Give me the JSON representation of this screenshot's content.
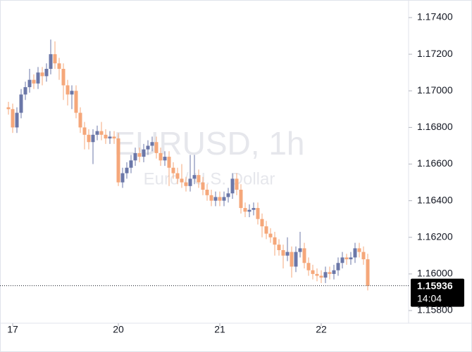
{
  "chart_data": {
    "type": "candlestick",
    "watermark": "EURUSD, 1h",
    "watermark_subtitle": "Euro / U.S. Dollar",
    "countdown": "14:04",
    "up_color": "#6b77a8",
    "down_color": "#f5a77a",
    "xlim": [
      -2,
      94.67
    ],
    "xticks": [
      {
        "value": 1,
        "label": "17"
      },
      {
        "value": 26,
        "label": "20"
      },
      {
        "value": 50,
        "label": "21"
      },
      {
        "value": 74,
        "label": "22"
      }
    ],
    "ylim": [
      1.15731,
      1.17496
    ],
    "yticks": [
      {
        "value": 1.174,
        "label": "1.17400"
      },
      {
        "value": 1.172,
        "label": "1.17200"
      },
      {
        "value": 1.17,
        "label": "1.17000"
      },
      {
        "value": 1.168,
        "label": "1.16800"
      },
      {
        "value": 1.166,
        "label": "1.16600"
      },
      {
        "value": 1.164,
        "label": "1.16400"
      },
      {
        "value": 1.162,
        "label": "1.16200"
      },
      {
        "value": 1.16,
        "label": "1.16000"
      },
      {
        "value": 1.158,
        "label": "1.15800"
      }
    ],
    "open": [
      1.1691,
      1.169,
      1.168,
      1.1688,
      1.1698,
      1.1702,
      1.1706,
      1.1704,
      1.171,
      1.1708,
      1.1712,
      1.172,
      1.1715,
      1.1712,
      1.1703,
      1.1698,
      1.17,
      1.1688,
      1.168,
      1.1676,
      1.1672,
      1.1676,
      1.1678,
      1.1676,
      1.1674,
      1.1675,
      1.1674,
      1.165,
      1.1655,
      1.1658,
      1.1662,
      1.1666,
      1.1664,
      1.1668,
      1.167,
      1.1672,
      1.1666,
      1.1662,
      1.1664,
      1.1658,
      1.1655,
      1.1652,
      1.165,
      1.1648,
      1.1652,
      1.1654,
      1.165,
      1.1646,
      1.1643,
      1.164,
      1.1642,
      1.164,
      1.1642,
      1.1644,
      1.1652,
      1.1646,
      1.1636,
      1.1634,
      1.1635,
      1.1636,
      1.163,
      1.1626,
      1.1622,
      1.162,
      1.1616,
      1.1613,
      1.161,
      1.1612,
      1.1604,
      1.1612,
      1.1614,
      1.1606,
      1.1602,
      1.16,
      1.1599,
      1.1598,
      1.1601,
      1.16,
      1.1602,
      1.1606,
      1.1609,
      1.1608,
      1.1609,
      1.1614,
      1.1612,
      1.1608
    ],
    "high": [
      1.1694,
      1.1693,
      1.1691,
      1.1701,
      1.1705,
      1.1712,
      1.1709,
      1.1713,
      1.1713,
      1.1715,
      1.1728,
      1.1727,
      1.1718,
      1.1715,
      1.1706,
      1.1703,
      1.1703,
      1.1691,
      1.1683,
      1.1679,
      1.1679,
      1.1681,
      1.1683,
      1.1679,
      1.1678,
      1.1678,
      1.1677,
      1.1658,
      1.1661,
      1.1665,
      1.1669,
      1.1669,
      1.1671,
      1.1673,
      1.1675,
      1.1675,
      1.1669,
      1.1667,
      1.1667,
      1.1661,
      1.1658,
      1.166,
      1.1653,
      1.1665,
      1.1665,
      1.1657,
      1.1653,
      1.1649,
      1.1646,
      1.1645,
      1.1645,
      1.1645,
      1.1647,
      1.1655,
      1.1655,
      1.1649,
      1.1639,
      1.1638,
      1.1639,
      1.1639,
      1.1633,
      1.1629,
      1.1625,
      1.1623,
      1.1619,
      1.1616,
      1.162,
      1.1615,
      1.1615,
      1.1623,
      1.1617,
      1.1609,
      1.1605,
      1.1603,
      1.1602,
      1.1604,
      1.1604,
      1.1605,
      1.1609,
      1.1612,
      1.1611,
      1.1612,
      1.1617,
      1.1617,
      1.1615,
      1.1611
    ],
    "low": [
      1.1687,
      1.1677,
      1.1677,
      1.1685,
      1.1695,
      1.1699,
      1.1701,
      1.1701,
      1.1703,
      1.1705,
      1.1709,
      1.1712,
      1.1706,
      1.1695,
      1.1692,
      1.169,
      1.1685,
      1.1677,
      1.1668,
      1.1668,
      1.166,
      1.1673,
      1.1673,
      1.1671,
      1.1671,
      1.1671,
      1.1648,
      1.1647,
      1.1652,
      1.1655,
      1.1659,
      1.1661,
      1.1661,
      1.1665,
      1.1667,
      1.1663,
      1.1659,
      1.1659,
      1.1648,
      1.1652,
      1.1649,
      1.1647,
      1.1645,
      1.1645,
      1.1649,
      1.1647,
      1.1643,
      1.164,
      1.1637,
      1.1637,
      1.1637,
      1.1637,
      1.1639,
      1.1641,
      1.1643,
      1.1633,
      1.1631,
      1.1631,
      1.1632,
      1.1627,
      1.162,
      1.1619,
      1.1617,
      1.161,
      1.161,
      1.1603,
      1.1607,
      1.1598,
      1.1601,
      1.1609,
      1.1603,
      1.1599,
      1.1597,
      1.1596,
      1.1595,
      1.1595,
      1.1597,
      1.1597,
      1.1599,
      1.1603,
      1.1605,
      1.1605,
      1.1606,
      1.1609,
      1.1605,
      1.1591
    ],
    "close": [
      1.169,
      1.168,
      1.1688,
      1.1698,
      1.1702,
      1.1706,
      1.1704,
      1.171,
      1.1708,
      1.1712,
      1.172,
      1.1715,
      1.1712,
      1.1703,
      1.1698,
      1.17,
      1.1688,
      1.168,
      1.1676,
      1.1672,
      1.1676,
      1.1678,
      1.1676,
      1.1674,
      1.1675,
      1.1674,
      1.165,
      1.1655,
      1.1658,
      1.1662,
      1.1666,
      1.1664,
      1.1668,
      1.167,
      1.1672,
      1.1666,
      1.1662,
      1.1664,
      1.1658,
      1.1655,
      1.1652,
      1.165,
      1.1648,
      1.1652,
      1.1654,
      1.165,
      1.1646,
      1.1643,
      1.164,
      1.1642,
      1.164,
      1.1642,
      1.1644,
      1.1652,
      1.1646,
      1.1636,
      1.1634,
      1.1635,
      1.1636,
      1.163,
      1.1626,
      1.1622,
      1.162,
      1.1616,
      1.1613,
      1.161,
      1.1612,
      1.1604,
      1.1612,
      1.1614,
      1.1606,
      1.1602,
      1.16,
      1.1599,
      1.1598,
      1.1601,
      1.16,
      1.1602,
      1.1606,
      1.1609,
      1.1608,
      1.1609,
      1.1614,
      1.1612,
      1.1608,
      1.15936
    ]
  }
}
